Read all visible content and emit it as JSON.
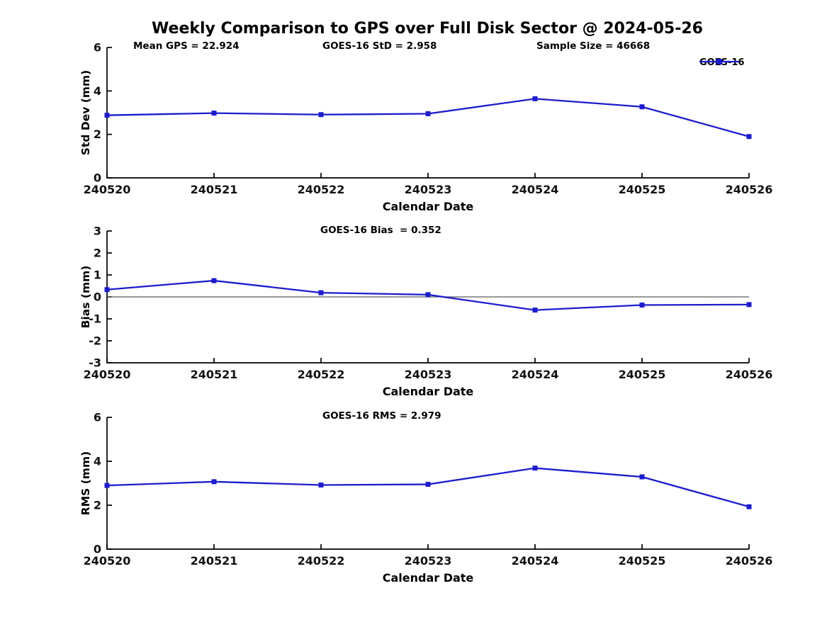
{
  "title": "Weekly Comparison to GPS over Full Disk Sector @ 2024-05-26",
  "legend": {
    "label": "GOES-16"
  },
  "colors": {
    "line": "#1c1ccd",
    "marker": "#1c1ccd",
    "axis": "#000000",
    "zero_line": "#5a5a5a",
    "background": "#ffffff",
    "text": "#111111"
  },
  "chart_data": [
    {
      "type": "line",
      "name": "std-dev",
      "categories": [
        "240520",
        "240521",
        "240522",
        "240523",
        "240524",
        "240525",
        "240526"
      ],
      "series": [
        {
          "name": "GOES-16",
          "values": [
            2.88,
            2.98,
            2.91,
            2.95,
            3.64,
            3.27,
            1.9
          ]
        }
      ],
      "xlabel": "Calendar Date",
      "ylabel": "Std Dev (mm)",
      "ylim": [
        0,
        6
      ],
      "yticks": [
        0,
        2,
        4,
        6
      ],
      "grid": false,
      "zero_line": false,
      "legend_position": "top-right",
      "marker": "square",
      "annotations": [
        {
          "text": "Mean GPS = 22.924",
          "x": 188
        },
        {
          "text": "GOES-16 StD = 2.958",
          "x": 455
        },
        {
          "text": "Sample Size = 46668",
          "x": 757
        }
      ]
    },
    {
      "type": "line",
      "name": "bias",
      "categories": [
        "240520",
        "240521",
        "240522",
        "240523",
        "240524",
        "240525",
        "240526"
      ],
      "series": [
        {
          "name": "GOES-16",
          "values": [
            0.33,
            0.74,
            0.19,
            0.1,
            -0.6,
            -0.37,
            -0.35
          ]
        }
      ],
      "xlabel": "Calendar Date",
      "ylabel": "Bias (mm)",
      "ylim": [
        -3,
        3
      ],
      "yticks": [
        -3,
        -2,
        -1,
        0,
        1,
        2,
        3
      ],
      "grid": false,
      "zero_line": true,
      "legend_position": "none",
      "marker": "square",
      "annotations": [
        {
          "text": "GOES-16 Bias  = 0.352",
          "x": 452
        }
      ]
    },
    {
      "type": "line",
      "name": "rms",
      "categories": [
        "240520",
        "240521",
        "240522",
        "240523",
        "240524",
        "240525",
        "240526"
      ],
      "series": [
        {
          "name": "GOES-16",
          "values": [
            2.9,
            3.07,
            2.92,
            2.95,
            3.69,
            3.29,
            1.93
          ]
        }
      ],
      "xlabel": "Calendar Date",
      "ylabel": "RMS (mm)",
      "ylim": [
        0,
        6
      ],
      "yticks": [
        0,
        2,
        4,
        6
      ],
      "grid": false,
      "zero_line": false,
      "legend_position": "none",
      "marker": "square",
      "annotations": [
        {
          "text": "GOES-16 RMS = 2.979",
          "x": 455
        }
      ]
    }
  ]
}
